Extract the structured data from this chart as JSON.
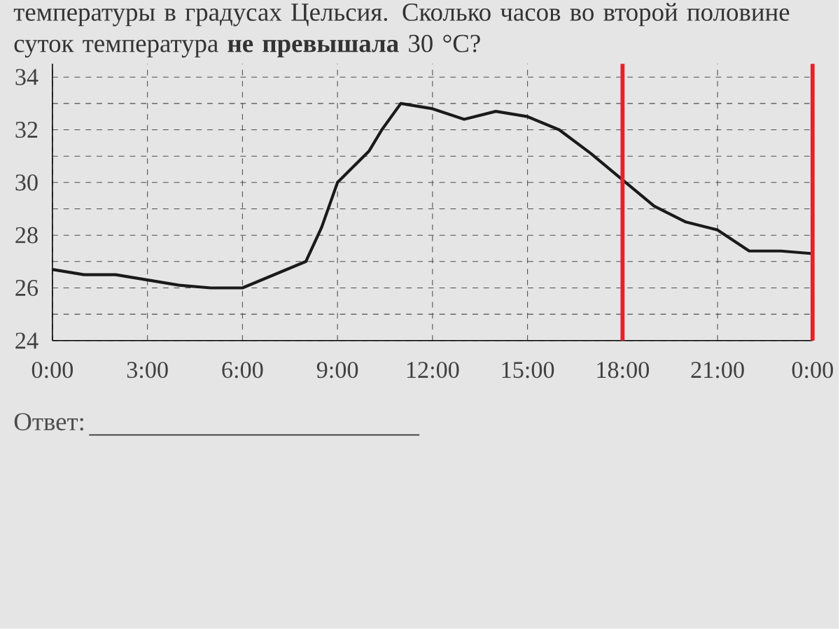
{
  "chart_data": {
    "type": "line",
    "title": "температуры в градусах Цельсия. Сколько часов во второй половине суток температура **не превышала** 30 °C?",
    "x": [
      0,
      1,
      2,
      3,
      4,
      5,
      6,
      7,
      8,
      8.5,
      9,
      10,
      10.4,
      11,
      12,
      13,
      14,
      15,
      16,
      17,
      18,
      19,
      20,
      21,
      22,
      23,
      24
    ],
    "series": [
      {
        "color": "#1a1a1a",
        "values": [
          26.7,
          26.5,
          26.5,
          26.3,
          26.1,
          26.0,
          26.0,
          26.5,
          27.0,
          28.3,
          30.0,
          31.2,
          32.0,
          33.0,
          32.8,
          32.4,
          32.7,
          32.5,
          32.0,
          31.1,
          30.1,
          29.1,
          28.5,
          28.2,
          27.4,
          27.4,
          27.3
        ]
      }
    ],
    "xlim": [
      0,
      24
    ],
    "xticks": [
      {
        "value": 0,
        "label": "0:00"
      },
      {
        "value": 3,
        "label": "3:00"
      },
      {
        "value": 6,
        "label": "6:00"
      },
      {
        "value": 9,
        "label": "9:00"
      },
      {
        "value": 12,
        "label": "12:00"
      },
      {
        "value": 15,
        "label": "15:00"
      },
      {
        "value": 18,
        "label": "18:00"
      },
      {
        "value": 21,
        "label": "21:00"
      },
      {
        "value": 24,
        "label": "0:00"
      }
    ],
    "ylim": [
      24,
      34.5
    ],
    "yticks": [
      24,
      {
        "value": 25,
        "label": null
      },
      26,
      {
        "value": 27,
        "label": null
      },
      28,
      {
        "value": 29,
        "label": null
      },
      30,
      {
        "value": 31,
        "label": null
      },
      32,
      {
        "value": 33,
        "label": null
      },
      34
    ],
    "grid": true,
    "ref_lines": [
      {
        "axis": "x",
        "value": 18,
        "color": "#e8202a"
      },
      {
        "axis": "x",
        "value": 24,
        "color": "#e8202a"
      }
    ],
    "annotations": [
      "Ответ:"
    ]
  }
}
